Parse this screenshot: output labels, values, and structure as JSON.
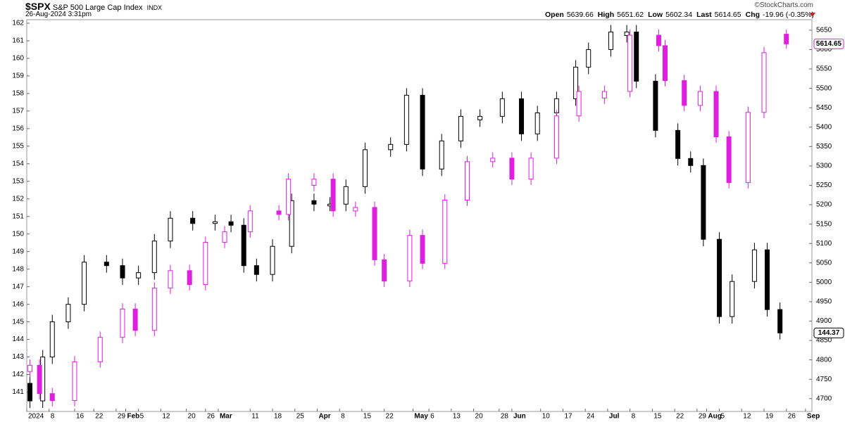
{
  "header": {
    "symbol": "$SPX",
    "name": "S&P 500 Large Cap Index",
    "exchange": "INDX",
    "timestamp": "26-Aug-2024 3:31pm",
    "copyright": "©StockCharts.com",
    "quote": [
      {
        "label": "Open",
        "value": "5639.66"
      },
      {
        "label": "High",
        "value": "5651.62"
      },
      {
        "label": "Low",
        "value": "5602.34"
      },
      {
        "label": "Last",
        "value": "5614.65"
      },
      {
        "label": "Chg",
        "value": "-19.96 (-0.35%)"
      }
    ]
  },
  "chart_data": {
    "type": "candlestick",
    "xlim": [
      1,
      247
    ],
    "xticks": [
      {
        "value": 1,
        "label": "2024"
      },
      8,
      16,
      22,
      29,
      {
        "value": 32,
        "label": "Feb"
      },
      {
        "value": 36,
        "label": "5"
      },
      {
        "value": 43,
        "label": "12"
      },
      {
        "value": 51,
        "label": "20"
      },
      {
        "value": 57,
        "label": "26"
      },
      {
        "value": 61,
        "label": "Mar"
      },
      {
        "value": 71,
        "label": "11"
      },
      {
        "value": 78,
        "label": "18"
      },
      {
        "value": 85,
        "label": "25"
      },
      {
        "value": 92,
        "label": "Apr"
      },
      {
        "value": 99,
        "label": "8"
      },
      {
        "value": 106,
        "label": "15"
      },
      {
        "value": 113,
        "label": "22"
      },
      {
        "value": 122,
        "label": "May"
      },
      {
        "value": 127,
        "label": "6"
      },
      {
        "value": 134,
        "label": "13"
      },
      {
        "value": 141,
        "label": "20"
      },
      {
        "value": 149,
        "label": "28"
      },
      {
        "value": 153,
        "label": "Jun"
      },
      {
        "value": 162,
        "label": "10"
      },
      {
        "value": 169,
        "label": "17"
      },
      {
        "value": 176,
        "label": "24"
      },
      {
        "value": 183,
        "label": "Jul"
      },
      {
        "value": 190,
        "label": "8"
      },
      {
        "value": 197,
        "label": "15"
      },
      {
        "value": 204,
        "label": "22"
      },
      {
        "value": 211,
        "label": "29"
      },
      {
        "value": 214,
        "label": "Aug"
      },
      {
        "value": 218,
        "label": "5"
      },
      {
        "value": 225,
        "label": "12"
      },
      {
        "value": 232,
        "label": "19"
      },
      {
        "value": 239,
        "label": "26"
      },
      {
        "value": 245,
        "label": "Sep"
      }
    ],
    "ylim": [
      139.9,
      162.2
    ],
    "yticks": [
      141,
      142,
      143,
      144,
      145,
      146,
      147,
      148,
      149,
      150,
      151,
      152,
      153,
      154,
      155,
      156,
      157,
      158,
      159,
      160,
      161,
      162
    ],
    "y2lim": [
      4667,
      5677
    ],
    "y2ticks": [
      4700,
      4750,
      4800,
      4850,
      4900,
      4950,
      5000,
      5050,
      5100,
      5150,
      5200,
      5250,
      5300,
      5350,
      5400,
      5450,
      5500,
      5550,
      5600,
      5650
    ],
    "series": [
      {
        "color": "#000000",
        "axis": "y",
        "last_label": "144.37",
        "x": [
          2,
          6,
          9,
          14,
          19,
          26,
          31,
          36,
          41,
          46,
          53,
          60,
          65,
          69,
          73,
          78,
          84,
          91,
          96,
          101,
          107,
          115,
          120,
          125,
          131,
          137,
          143,
          150,
          156,
          161,
          167,
          173,
          177,
          184,
          189,
          192,
          198,
          205,
          209,
          213,
          218,
          222,
          229,
          233,
          237
        ],
        "open": [
          141.5,
          140.5,
          143,
          145,
          146,
          148.4,
          148.2,
          147.5,
          147.8,
          149.6,
          150.9,
          150.6,
          150.7,
          150.5,
          148.2,
          147.7,
          149.3,
          151.9,
          151.6,
          151.7,
          152.7,
          154.8,
          155.1,
          157.9,
          153.7,
          155.3,
          156.5,
          156.7,
          157.7,
          155.7,
          156.9,
          157.7,
          159.5,
          160.5,
          161.3,
          161.5,
          158.7,
          155.9,
          154.3,
          153.9,
          149.7,
          145.3,
          147.3,
          149.1,
          145.7
        ],
        "high": [
          141.9,
          143.4,
          145.4,
          146.4,
          148.8,
          148.8,
          148.6,
          148.2,
          150,
          151.3,
          151.3,
          151.1,
          151.1,
          150.9,
          148.6,
          149.7,
          152.3,
          152.3,
          152.1,
          153.1,
          155.2,
          155.5,
          158.3,
          158.3,
          155.7,
          157.1,
          157.1,
          158.1,
          158.1,
          157.3,
          158.1,
          159.9,
          160.9,
          161.9,
          161.9,
          161.9,
          159.1,
          156.3,
          154.7,
          154.3,
          150.1,
          147.7,
          149.5,
          149.5,
          146.1
        ],
        "low": [
          140.1,
          140.1,
          142.6,
          144.6,
          145.6,
          147.8,
          147.1,
          147.1,
          147.4,
          149.2,
          150.2,
          150.2,
          150.1,
          147.8,
          147.3,
          147.3,
          148.9,
          151.3,
          151.3,
          151.3,
          152.3,
          154.4,
          154.7,
          153.3,
          153.3,
          154.9,
          156.1,
          156.3,
          155.3,
          155.3,
          156.5,
          157.3,
          159.1,
          160.1,
          160.9,
          158.3,
          155.5,
          153.9,
          153.5,
          149.3,
          144.9,
          144.9,
          146.9,
          145.3,
          144
        ],
        "close": [
          140.5,
          143,
          145,
          146,
          148.4,
          148.2,
          147.5,
          147.8,
          149.6,
          150.9,
          150.6,
          150.7,
          150.5,
          148.2,
          147.7,
          149.3,
          151.9,
          151.7,
          151.7,
          152.7,
          154.8,
          155.1,
          157.9,
          153.7,
          155.3,
          156.7,
          156.7,
          157.7,
          155.7,
          156.9,
          157.7,
          159.5,
          160.5,
          161.5,
          161.5,
          158.7,
          155.9,
          154.3,
          153.9,
          149.7,
          145.3,
          147.3,
          149.1,
          145.7,
          144.37
        ]
      },
      {
        "color": "#e01ee0",
        "axis": "y2",
        "last_label": "5614.65",
        "x": [
          2,
          5,
          9,
          16,
          24,
          31,
          35,
          41,
          46,
          52,
          57,
          63,
          71,
          80,
          83,
          91,
          97,
          104,
          110,
          113,
          121,
          125,
          132,
          139,
          147,
          153,
          159,
          167,
          174,
          182,
          190,
          199,
          201,
          207,
          212,
          217,
          221,
          227,
          232,
          239
        ],
        "open": [
          4770,
          4786,
          4713,
          4695,
          4795,
          4858,
          4931,
          4876,
          4985,
          5030,
          4994,
          5103,
          5130,
          5184,
          5175,
          5250,
          5266,
          5184,
          5193,
          5058,
          5003,
          5121,
          5049,
          5212,
          5311,
          5320,
          5266,
          5320,
          5429,
          5475,
          5492,
          5637,
          5610,
          5520,
          5456,
          5492,
          5375,
          5257,
          5438,
          5639.66
        ],
        "high": [
          4801,
          4801,
          4728,
          4810,
          4873,
          4946,
          4946,
          5000,
          5045,
          5045,
          5118,
          5145,
          5199,
          5199,
          5281,
          5281,
          5281,
          5208,
          5208,
          5073,
          5136,
          5136,
          5227,
          5326,
          5335,
          5335,
          5335,
          5444,
          5507,
          5507,
          5652,
          5652,
          5625,
          5535,
          5507,
          5507,
          5390,
          5453,
          5607,
          5651.62
        ],
        "low": [
          4755,
          4698,
          4680,
          4680,
          4780,
          4843,
          4861,
          4861,
          4970,
          4979,
          4979,
          5088,
          5115,
          5160,
          5160,
          5235,
          5169,
          5169,
          5043,
          4988,
          4988,
          5034,
          5034,
          5197,
          5296,
          5251,
          5251,
          5305,
          5414,
          5460,
          5477,
          5595,
          5505,
          5441,
          5441,
          5360,
          5242,
          5242,
          5423,
          5602.34
        ],
        "close": [
          4786,
          4713,
          4695,
          4795,
          4858,
          4931,
          4876,
          4985,
          5030,
          4994,
          5103,
          5130,
          5184,
          5175,
          5266,
          5266,
          5184,
          5193,
          5058,
          5003,
          5121,
          5049,
          5212,
          5311,
          5320,
          5266,
          5320,
          5429,
          5492,
          5492,
          5637,
          5610,
          5520,
          5456,
          5492,
          5375,
          5257,
          5438,
          5592,
          5614.65
        ]
      }
    ]
  }
}
